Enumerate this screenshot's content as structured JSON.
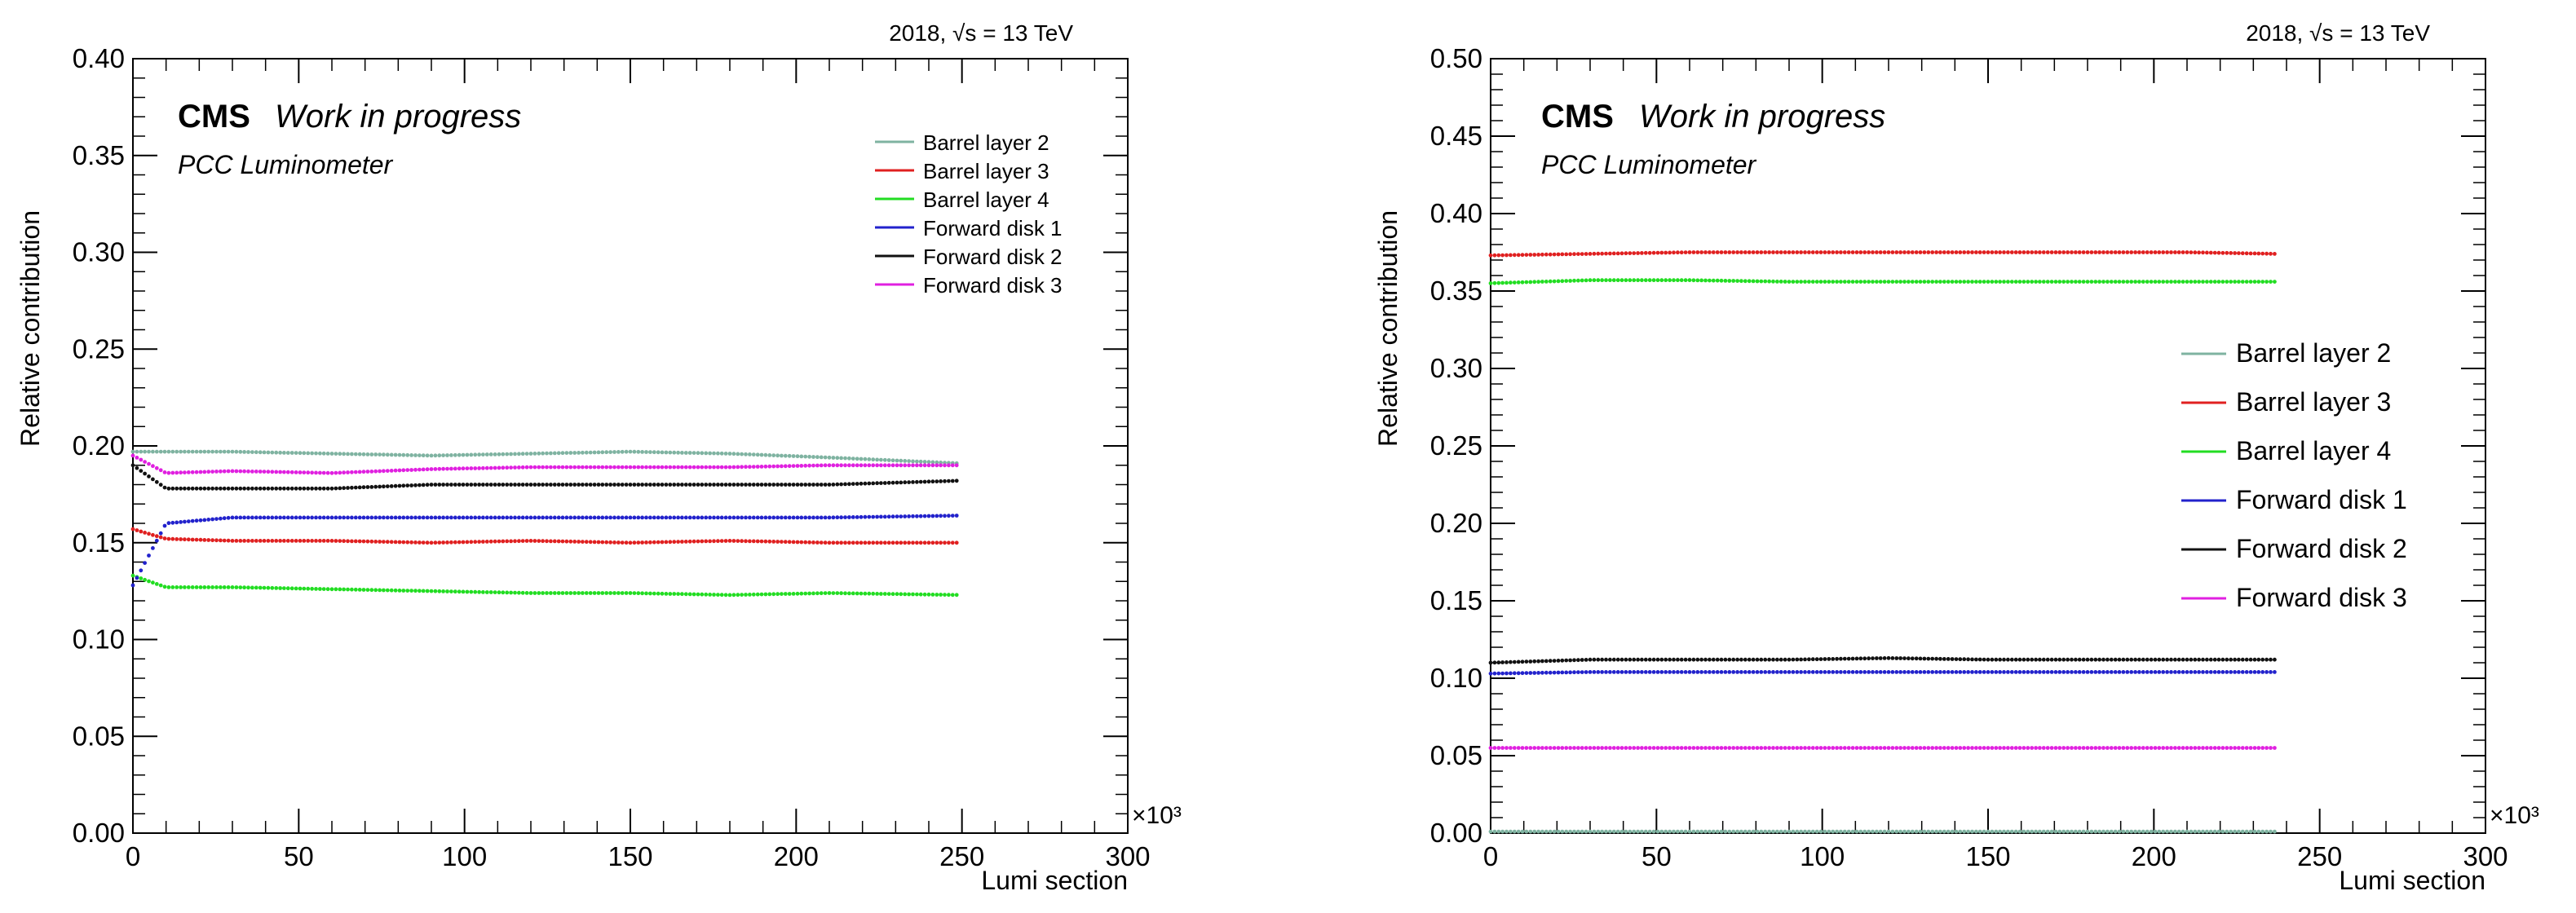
{
  "chart_data": [
    {
      "type": "scatter",
      "energy_label": "2018, √s = 13 TeV",
      "experiment": "CMS",
      "status": "Work in progress",
      "subtitle": "PCC Luminometer",
      "xlabel": "Lumi section",
      "ylabel": "Relative contribution",
      "x_multiplier": "×10³",
      "xlim": [
        0,
        300
      ],
      "ylim": [
        0,
        0.4
      ],
      "x_ticks": [
        "0",
        "50",
        "100",
        "150",
        "200",
        "250",
        "300"
      ],
      "y_ticks": [
        "0.00",
        "0.05",
        "0.10",
        "0.15",
        "0.20",
        "0.25",
        "0.30",
        "0.35",
        "0.40"
      ],
      "grid": false,
      "legend": "top-right",
      "x_range": [
        0,
        249
      ],
      "series": [
        {
          "name": "Barrel layer 2",
          "color": "#7fb3a1",
          "x": [
            0,
            10,
            30,
            60,
            90,
            120,
            150,
            180,
            210,
            249
          ],
          "values": [
            0.197,
            0.197,
            0.197,
            0.196,
            0.195,
            0.196,
            0.197,
            0.196,
            0.194,
            0.191
          ]
        },
        {
          "name": "Barrel layer 3",
          "color": "#e02020",
          "x": [
            0,
            10,
            30,
            60,
            90,
            120,
            150,
            180,
            210,
            249
          ],
          "values": [
            0.157,
            0.152,
            0.151,
            0.151,
            0.15,
            0.151,
            0.15,
            0.151,
            0.15,
            0.15
          ]
        },
        {
          "name": "Barrel layer 4",
          "color": "#22dd22",
          "x": [
            0,
            10,
            30,
            60,
            90,
            120,
            150,
            180,
            210,
            249
          ],
          "values": [
            0.133,
            0.127,
            0.127,
            0.126,
            0.125,
            0.124,
            0.124,
            0.123,
            0.124,
            0.123
          ]
        },
        {
          "name": "Forward disk 1",
          "color": "#2222cc",
          "x": [
            0,
            10,
            30,
            60,
            90,
            120,
            150,
            180,
            210,
            249
          ],
          "values": [
            0.128,
            0.16,
            0.163,
            0.163,
            0.163,
            0.163,
            0.163,
            0.163,
            0.163,
            0.164
          ]
        },
        {
          "name": "Forward disk 2",
          "color": "#111111",
          "x": [
            0,
            10,
            30,
            60,
            90,
            120,
            150,
            180,
            210,
            249
          ],
          "values": [
            0.19,
            0.178,
            0.178,
            0.178,
            0.18,
            0.18,
            0.18,
            0.18,
            0.18,
            0.182
          ]
        },
        {
          "name": "Forward disk 3",
          "color": "#e020e0",
          "x": [
            0,
            10,
            30,
            60,
            90,
            120,
            150,
            180,
            210,
            249
          ],
          "values": [
            0.195,
            0.186,
            0.187,
            0.186,
            0.188,
            0.189,
            0.189,
            0.189,
            0.19,
            0.19
          ]
        }
      ]
    },
    {
      "type": "scatter",
      "energy_label": "2018, √s = 13 TeV",
      "experiment": "CMS",
      "status": "Work in progress",
      "subtitle": "PCC Luminometer",
      "xlabel": "Lumi section",
      "ylabel": "Relative contribution",
      "x_multiplier": "×10³",
      "xlim": [
        0,
        300
      ],
      "ylim": [
        0,
        0.5
      ],
      "x_ticks": [
        "0",
        "50",
        "100",
        "150",
        "200",
        "250",
        "300"
      ],
      "y_ticks": [
        "0.00",
        "0.05",
        "0.10",
        "0.15",
        "0.20",
        "0.25",
        "0.30",
        "0.35",
        "0.40",
        "0.45",
        "0.50"
      ],
      "grid": false,
      "legend": "right",
      "x_range": [
        0,
        237
      ],
      "series": [
        {
          "name": "Barrel layer 2",
          "color": "#7fb3a1",
          "x": [
            0,
            30,
            60,
            90,
            120,
            150,
            180,
            210,
            237
          ],
          "values": [
            0.001,
            0.001,
            0.001,
            0.001,
            0.001,
            0.001,
            0.001,
            0.001,
            0.001
          ]
        },
        {
          "name": "Barrel layer 3",
          "color": "#e02020",
          "x": [
            0,
            30,
            60,
            90,
            120,
            150,
            180,
            210,
            237
          ],
          "values": [
            0.373,
            0.374,
            0.375,
            0.375,
            0.375,
            0.375,
            0.375,
            0.375,
            0.374
          ]
        },
        {
          "name": "Barrel layer 4",
          "color": "#22dd22",
          "x": [
            0,
            30,
            60,
            90,
            120,
            150,
            180,
            210,
            237
          ],
          "values": [
            0.355,
            0.357,
            0.357,
            0.356,
            0.356,
            0.356,
            0.356,
            0.356,
            0.356
          ]
        },
        {
          "name": "Forward disk 1",
          "color": "#2222cc",
          "x": [
            0,
            30,
            60,
            90,
            120,
            150,
            180,
            210,
            237
          ],
          "values": [
            0.103,
            0.104,
            0.104,
            0.104,
            0.104,
            0.104,
            0.104,
            0.104,
            0.104
          ]
        },
        {
          "name": "Forward disk 2",
          "color": "#111111",
          "x": [
            0,
            30,
            60,
            90,
            120,
            150,
            180,
            210,
            237
          ],
          "values": [
            0.11,
            0.112,
            0.112,
            0.112,
            0.113,
            0.112,
            0.112,
            0.112,
            0.112
          ]
        },
        {
          "name": "Forward disk 3",
          "color": "#e020e0",
          "x": [
            0,
            30,
            60,
            90,
            120,
            150,
            180,
            210,
            237
          ],
          "values": [
            0.055,
            0.055,
            0.055,
            0.055,
            0.055,
            0.055,
            0.055,
            0.055,
            0.055
          ]
        }
      ]
    }
  ]
}
